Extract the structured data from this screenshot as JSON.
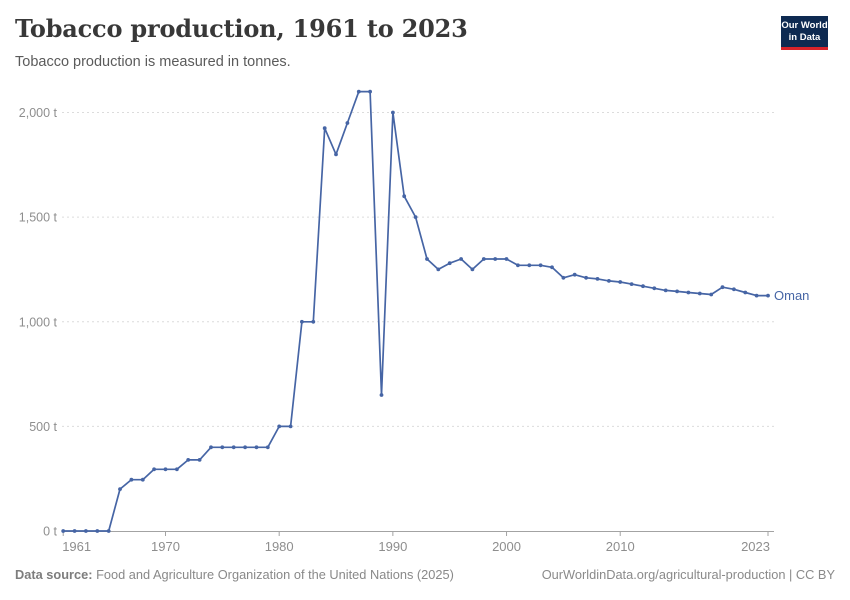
{
  "header": {
    "title": "Tobacco production, 1961 to 2023",
    "subtitle": "Tobacco production is measured in tonnes."
  },
  "logo": {
    "line1": "Our World",
    "line2": "in Data",
    "bg_color": "#0e2a51",
    "accent_color": "#d8232a"
  },
  "footer": {
    "source_label": "Data source:",
    "source_text": " Food and Agriculture Organization of the United Nations (2025)",
    "credit_text": "OurWorldinData.org/agricultural-production | CC BY"
  },
  "chart_data": {
    "type": "line",
    "title": "Tobacco production, 1961 to 2023",
    "subtitle": "Tobacco production is measured in tonnes.",
    "xlabel": "",
    "ylabel": "",
    "unit": "tonnes",
    "xlim": [
      1961,
      2023
    ],
    "ylim": [
      0,
      2100
    ],
    "grid": "horizontal-dashed",
    "legend_position": "end-of-line-label",
    "x_ticks": [
      1961,
      1970,
      1980,
      1990,
      2000,
      2010,
      2023
    ],
    "y_ticks": [
      0,
      500,
      1000,
      1500,
      2000
    ],
    "y_tick_labels": [
      "0 t",
      "500 t",
      "1,000 t",
      "1,500 t",
      "2,000 t"
    ],
    "colors": {
      "series": "#4665a5",
      "gridline": "#dcdcdc",
      "axis": "#a3a3a3",
      "tick_label": "#8e8e8e"
    },
    "series": [
      {
        "name": "Oman",
        "color": "#4665a5",
        "points": [
          [
            1961,
            0
          ],
          [
            1962,
            0
          ],
          [
            1963,
            0
          ],
          [
            1964,
            0
          ],
          [
            1965,
            0
          ],
          [
            1966,
            200
          ],
          [
            1967,
            245
          ],
          [
            1968,
            245
          ],
          [
            1969,
            295
          ],
          [
            1970,
            295
          ],
          [
            1971,
            295
          ],
          [
            1972,
            340
          ],
          [
            1973,
            340
          ],
          [
            1974,
            400
          ],
          [
            1975,
            400
          ],
          [
            1976,
            400
          ],
          [
            1977,
            400
          ],
          [
            1978,
            400
          ],
          [
            1979,
            400
          ],
          [
            1980,
            500
          ],
          [
            1981,
            500
          ],
          [
            1982,
            1000
          ],
          [
            1983,
            1000
          ],
          [
            1984,
            1925
          ],
          [
            1985,
            1800
          ],
          [
            1986,
            1950
          ],
          [
            1987,
            2100
          ],
          [
            1988,
            2100
          ],
          [
            1989,
            650
          ],
          [
            1990,
            2000
          ],
          [
            1991,
            1600
          ],
          [
            1992,
            1500
          ],
          [
            1993,
            1300
          ],
          [
            1994,
            1250
          ],
          [
            1995,
            1280
          ],
          [
            1996,
            1300
          ],
          [
            1997,
            1250
          ],
          [
            1998,
            1300
          ],
          [
            1999,
            1300
          ],
          [
            2000,
            1300
          ],
          [
            2001,
            1270
          ],
          [
            2002,
            1270
          ],
          [
            2003,
            1270
          ],
          [
            2004,
            1260
          ],
          [
            2005,
            1210
          ],
          [
            2006,
            1225
          ],
          [
            2007,
            1210
          ],
          [
            2008,
            1205
          ],
          [
            2009,
            1195
          ],
          [
            2010,
            1190
          ],
          [
            2011,
            1180
          ],
          [
            2012,
            1170
          ],
          [
            2013,
            1160
          ],
          [
            2014,
            1150
          ],
          [
            2015,
            1145
          ],
          [
            2016,
            1140
          ],
          [
            2017,
            1135
          ],
          [
            2018,
            1130
          ],
          [
            2019,
            1165
          ],
          [
            2020,
            1155
          ],
          [
            2021,
            1140
          ],
          [
            2022,
            1125
          ],
          [
            2023,
            1125
          ]
        ]
      }
    ]
  }
}
